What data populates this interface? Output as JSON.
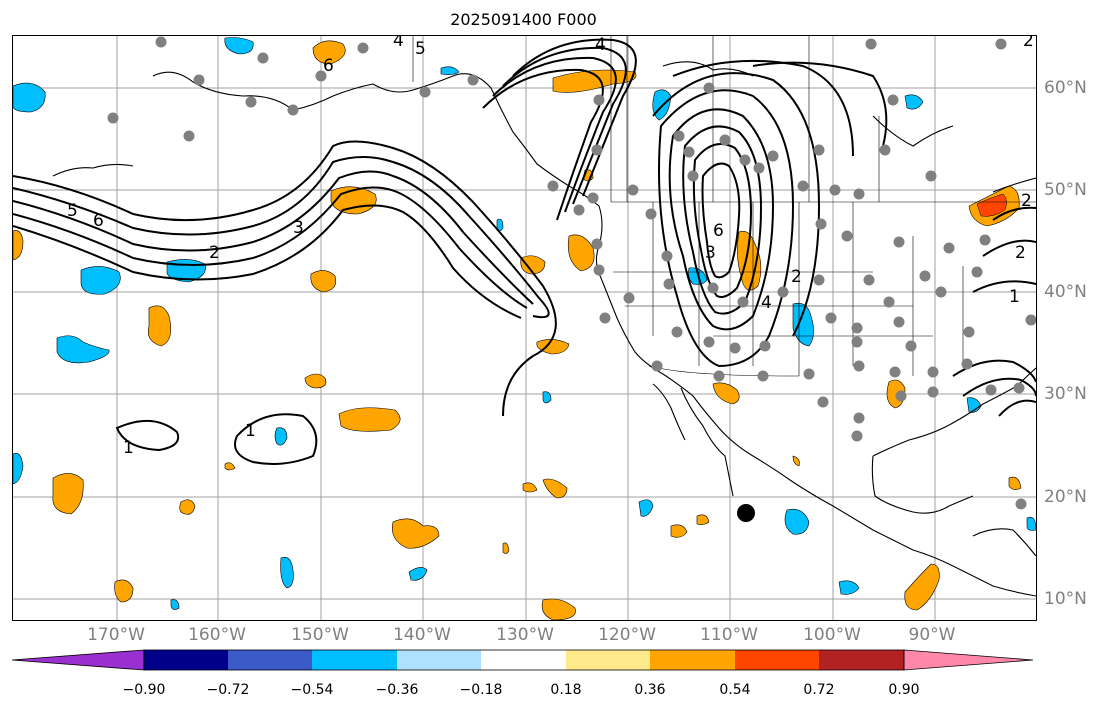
{
  "title": "2025091400 F000",
  "lon_labels": [
    "170°W",
    "160°W",
    "150°W",
    "140°W",
    "130°W",
    "120°W",
    "110°W",
    "100°W",
    "90°W"
  ],
  "lat_labels": [
    "60°N",
    "50°N",
    "40°N",
    "30°N",
    "20°N",
    "10°N"
  ],
  "colorbar": {
    "tick_labels": [
      "−0.90",
      "−0.72",
      "−0.54",
      "−0.36",
      "−0.18",
      "0.18",
      "0.36",
      "0.54",
      "0.72",
      "0.90"
    ],
    "colors": [
      "#9b30d0",
      "#00008b",
      "#3a5bc8",
      "#00bfff",
      "#b0e0ff",
      "#ffffff",
      "#ffeb8c",
      "#ffa500",
      "#ff4500",
      "#b22222",
      "#ff88aa"
    ]
  },
  "contour_labels": {
    "c1a": "1",
    "c1b": "1",
    "c2a": "2",
    "c3a": "3",
    "c5a": "5",
    "c6a": "6",
    "c6b": "6",
    "c4a": "4",
    "c5b": "5",
    "c4b": "4",
    "c2b": "2",
    "c3b": "3",
    "c6c": "6",
    "c4c": "4",
    "c2c": "2",
    "c2d": "2",
    "c1c": "1",
    "c2e": "2"
  },
  "fill_colors": {
    "positive": "#ffa500",
    "negative": "#00bfff",
    "strong_positive": "#ff4500"
  }
}
